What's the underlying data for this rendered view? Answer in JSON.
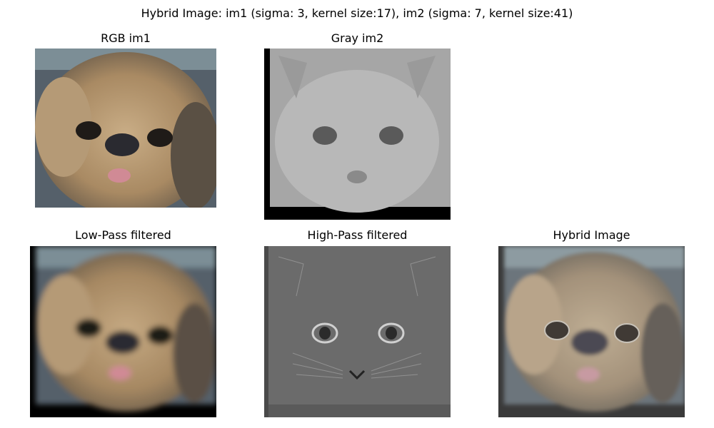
{
  "figure": {
    "suptitle": "Hybrid Image: im1 (sigma: 3, kernel size:17), im2 (sigma: 7, kernel size:41)",
    "panels": [
      {
        "title": "RGB im1",
        "subject": "dog-photo"
      },
      {
        "title": "Gray im2",
        "subject": "cat-photo-grayscale"
      },
      {
        "title": "Low-Pass filtered",
        "subject": "blurred-dog-photo"
      },
      {
        "title": "High-Pass filtered",
        "subject": "cat-edge-detail"
      },
      {
        "title": "Hybrid Image",
        "subject": "dog-cat-hybrid"
      }
    ]
  },
  "colors": {
    "background": "#ffffff",
    "fur": "#b89b74",
    "gray_bg": "#a8a8a8",
    "highpass_bg": "#6e6e6e",
    "padding_black": "#000000"
  }
}
